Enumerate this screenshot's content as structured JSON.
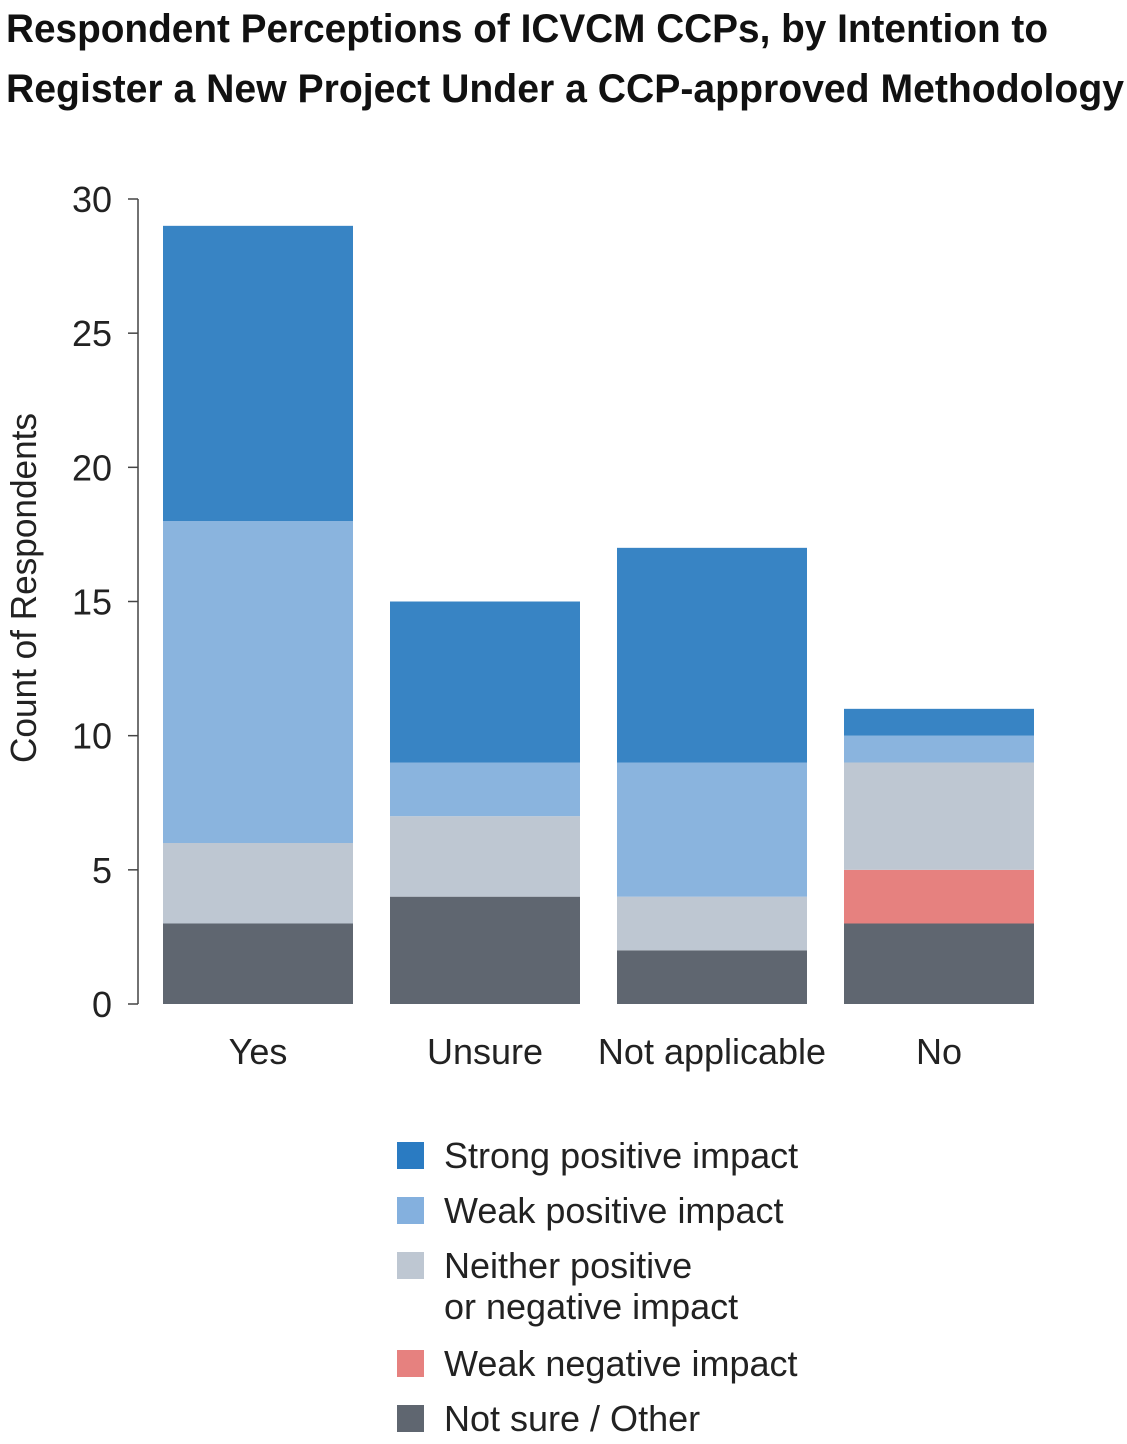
{
  "chart_data": {
    "type": "bar",
    "stacked": true,
    "title": [
      "Respondent Perceptions of ICVCM CCPs, by Intention to",
      "Register a New Project Under a CCP-approved Methodology"
    ],
    "xlabel": "",
    "ylabel": "Count of Respondents",
    "ylim": [
      0,
      30
    ],
    "yticks": [
      0,
      5,
      10,
      15,
      20,
      25,
      30
    ],
    "grid": false,
    "legend_placement": "bottom",
    "categories": [
      "Yes",
      "Unsure",
      "Not applicable",
      "No"
    ],
    "series": [
      {
        "name": "Not sure / Other",
        "color": "#5f6670",
        "values": [
          3,
          4,
          2,
          3
        ]
      },
      {
        "name": "Weak negative impact",
        "color": "#e6817f",
        "values": [
          0,
          0,
          0,
          2
        ]
      },
      {
        "name": "Neither positive or negative impact",
        "color": "#bec7d2",
        "values": [
          3,
          3,
          2,
          4
        ]
      },
      {
        "name": "Weak positive impact",
        "color": "#8ab4de",
        "values": [
          12,
          2,
          5,
          1
        ]
      },
      {
        "name": "Strong positive impact",
        "color": "#3884c4",
        "values": [
          11,
          6,
          8,
          1
        ]
      }
    ],
    "legend": [
      {
        "lines": [
          "Strong positive impact"
        ],
        "color": "#2a7bc2"
      },
      {
        "lines": [
          "Weak positive impact"
        ],
        "color": "#84b0de"
      },
      {
        "lines": [
          "Neither positive",
          "or negative impact"
        ],
        "color": "#bec7d2"
      },
      {
        "lines": [
          "Weak negative impact"
        ],
        "color": "#e6817f"
      },
      {
        "lines": [
          "Not sure / Other"
        ],
        "color": "#5f6670"
      }
    ]
  }
}
